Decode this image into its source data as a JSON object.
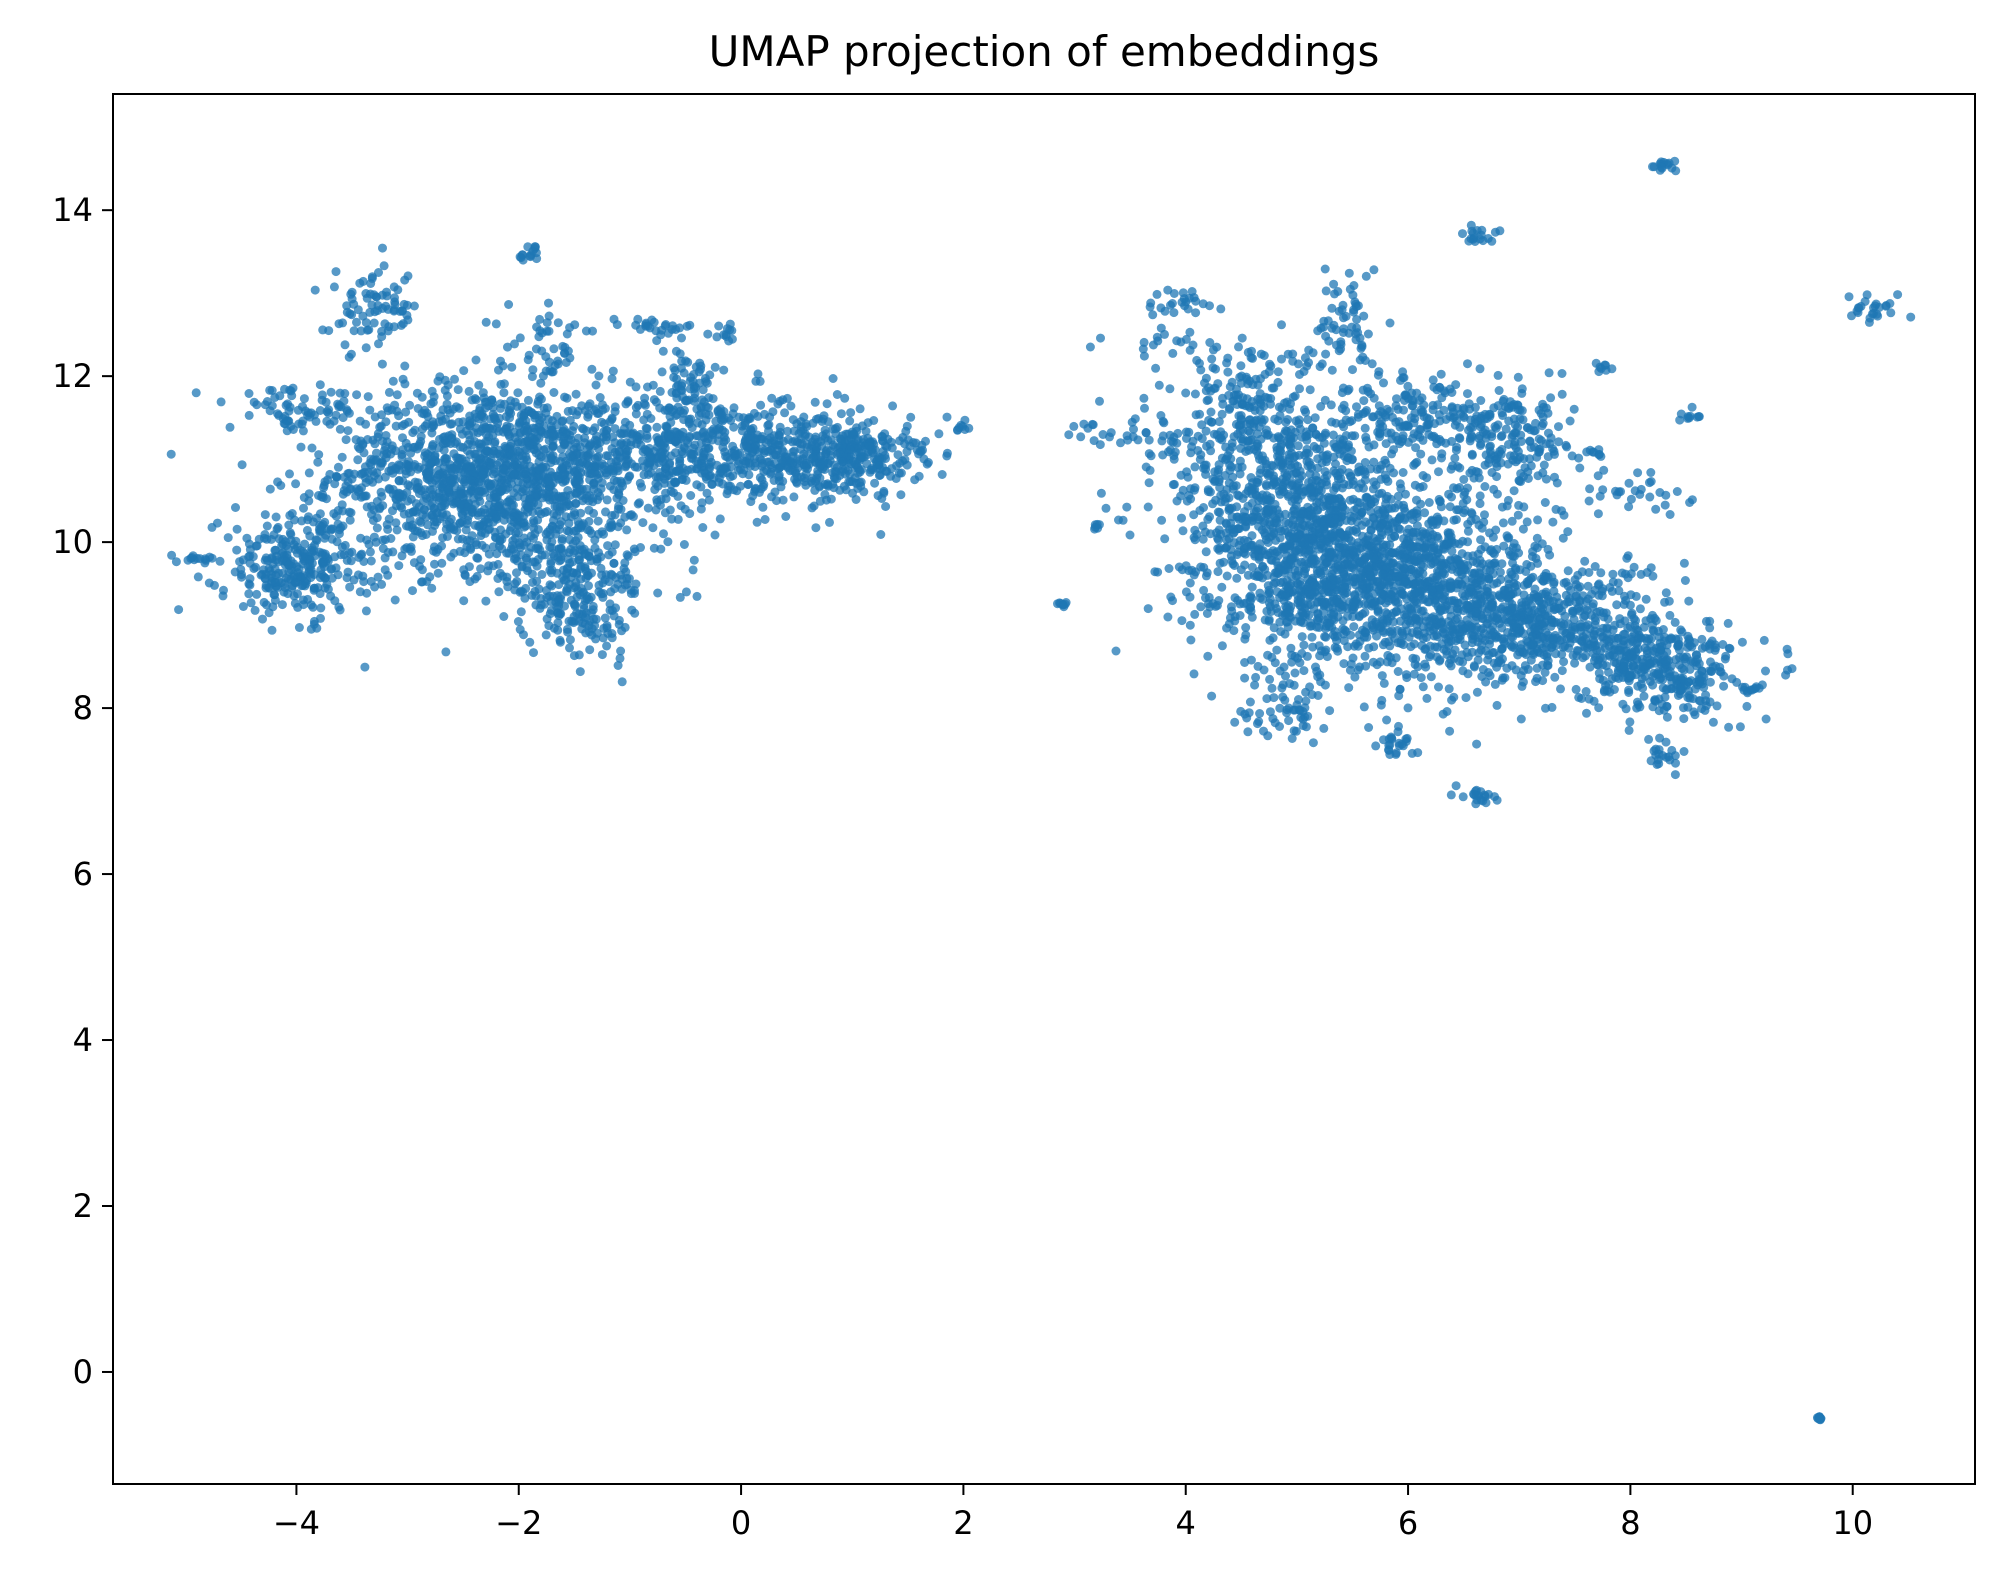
{
  "chart_data": {
    "type": "scatter",
    "title": "UMAP projection of embeddings",
    "xlabel": "",
    "ylabel": "",
    "xlim": [
      -5.65,
      11.1
    ],
    "ylim": [
      -1.35,
      15.4
    ],
    "x_ticks": [
      -4,
      -2,
      0,
      2,
      4,
      6,
      8,
      10
    ],
    "x_tick_labels": [
      "−4",
      "−2",
      "0",
      "2",
      "4",
      "6",
      "8",
      "10"
    ],
    "y_ticks": [
      0,
      2,
      4,
      6,
      8,
      10,
      12,
      14
    ],
    "y_tick_labels": [
      "0",
      "2",
      "4",
      "6",
      "8",
      "10",
      "12",
      "14"
    ],
    "grid": false,
    "legend": "none",
    "marker_color": "#1f77b4",
    "marker_alpha": 0.75,
    "series": [
      {
        "clusters": [
          {
            "cx": -2.3,
            "cy": 10.8,
            "sx": 0.7,
            "sy": 0.55,
            "n": 1400
          },
          {
            "cx": -0.3,
            "cy": 11.1,
            "sx": 0.75,
            "sy": 0.35,
            "n": 700
          },
          {
            "cx": 0.9,
            "cy": 11.0,
            "sx": 0.35,
            "sy": 0.22,
            "n": 200
          },
          {
            "cx": -4.0,
            "cy": 9.7,
            "sx": 0.35,
            "sy": 0.3,
            "n": 300
          },
          {
            "cx": -1.5,
            "cy": 9.6,
            "sx": 0.45,
            "sy": 0.35,
            "n": 250
          },
          {
            "cx": -1.4,
            "cy": 9.0,
            "sx": 0.2,
            "sy": 0.2,
            "n": 60
          },
          {
            "cx": -4.0,
            "cy": 11.6,
            "sx": 0.3,
            "sy": 0.12,
            "n": 60
          },
          {
            "cx": -3.3,
            "cy": 12.8,
            "sx": 0.2,
            "sy": 0.25,
            "n": 80
          },
          {
            "cx": -1.9,
            "cy": 13.45,
            "sx": 0.05,
            "sy": 0.06,
            "n": 15
          },
          {
            "cx": -1.7,
            "cy": 12.4,
            "sx": 0.2,
            "sy": 0.2,
            "n": 40
          },
          {
            "cx": -0.8,
            "cy": 12.6,
            "sx": 0.2,
            "sy": 0.05,
            "n": 25
          },
          {
            "cx": -0.15,
            "cy": 12.5,
            "sx": 0.06,
            "sy": 0.05,
            "n": 12
          },
          {
            "cx": -0.5,
            "cy": 11.9,
            "sx": 0.15,
            "sy": 0.2,
            "n": 60
          },
          {
            "cx": 1.2,
            "cy": 11.1,
            "sx": 0.25,
            "sy": 0.12,
            "n": 60
          },
          {
            "cx": -4.85,
            "cy": 9.78,
            "sx": 0.07,
            "sy": 0.03,
            "n": 12
          },
          {
            "cx": 5.9,
            "cy": 9.5,
            "sx": 0.7,
            "sy": 0.55,
            "n": 1300
          },
          {
            "cx": 5.0,
            "cy": 10.4,
            "sx": 0.55,
            "sy": 0.6,
            "n": 800
          },
          {
            "cx": 4.6,
            "cy": 11.5,
            "sx": 0.35,
            "sy": 0.5,
            "n": 250
          },
          {
            "cx": 7.2,
            "cy": 9.0,
            "sx": 0.55,
            "sy": 0.35,
            "n": 500
          },
          {
            "cx": 8.3,
            "cy": 8.5,
            "sx": 0.35,
            "sy": 0.3,
            "n": 350
          },
          {
            "cx": 6.9,
            "cy": 11.2,
            "sx": 0.3,
            "sy": 0.3,
            "n": 200
          },
          {
            "cx": 6.0,
            "cy": 11.5,
            "sx": 0.35,
            "sy": 0.25,
            "n": 150
          },
          {
            "cx": 5.45,
            "cy": 12.6,
            "sx": 0.12,
            "sy": 0.35,
            "n": 60
          },
          {
            "cx": 4.9,
            "cy": 8.1,
            "sx": 0.2,
            "sy": 0.25,
            "n": 60
          },
          {
            "cx": 5.9,
            "cy": 7.6,
            "sx": 0.08,
            "sy": 0.15,
            "n": 25
          },
          {
            "cx": 6.65,
            "cy": 6.95,
            "sx": 0.08,
            "sy": 0.06,
            "n": 20
          },
          {
            "cx": 8.3,
            "cy": 7.4,
            "sx": 0.1,
            "sy": 0.1,
            "n": 20
          },
          {
            "cx": 9.1,
            "cy": 8.25,
            "sx": 0.05,
            "sy": 0.02,
            "n": 10
          },
          {
            "cx": 8.05,
            "cy": 10.6,
            "sx": 0.25,
            "sy": 0.12,
            "n": 30
          },
          {
            "cx": 8.5,
            "cy": 11.5,
            "sx": 0.06,
            "sy": 0.04,
            "n": 10
          },
          {
            "cx": 7.7,
            "cy": 11.1,
            "sx": 0.05,
            "sy": 0.04,
            "n": 8
          },
          {
            "cx": 7.75,
            "cy": 12.1,
            "sx": 0.05,
            "sy": 0.03,
            "n": 8
          },
          {
            "cx": 6.65,
            "cy": 13.7,
            "sx": 0.07,
            "sy": 0.06,
            "n": 18
          },
          {
            "cx": 8.3,
            "cy": 14.55,
            "sx": 0.07,
            "sy": 0.04,
            "n": 15
          },
          {
            "cx": 10.2,
            "cy": 12.8,
            "sx": 0.15,
            "sy": 0.07,
            "n": 25
          },
          {
            "cx": 3.9,
            "cy": 12.9,
            "sx": 0.2,
            "sy": 0.1,
            "n": 25
          },
          {
            "cx": 3.85,
            "cy": 12.4,
            "sx": 0.25,
            "sy": 0.1,
            "n": 20
          },
          {
            "cx": 3.6,
            "cy": 11.3,
            "sx": 0.3,
            "sy": 0.12,
            "n": 35
          },
          {
            "cx": 4.9,
            "cy": 9.3,
            "sx": 0.3,
            "sy": 0.2,
            "n": 80
          },
          {
            "cx": 2.9,
            "cy": 9.25,
            "sx": 0.02,
            "sy": 0.02,
            "n": 8
          },
          {
            "cx": 3.2,
            "cy": 10.2,
            "sx": 0.02,
            "sy": 0.02,
            "n": 6
          },
          {
            "cx": 2.0,
            "cy": 11.4,
            "sx": 0.05,
            "sy": 0.03,
            "n": 8
          },
          {
            "cx": 9.7,
            "cy": -0.55,
            "sx": 0.015,
            "sy": 0.015,
            "n": 10
          }
        ]
      }
    ]
  }
}
